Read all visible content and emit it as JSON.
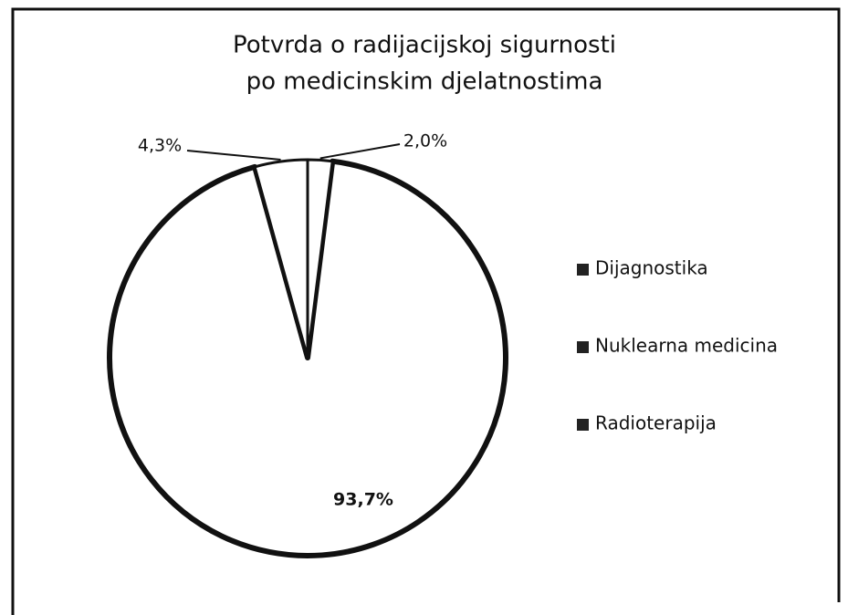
{
  "chart_data": {
    "type": "pie",
    "title": [
      "Potvrda o radijacijskoj sigurnosti",
      "po medicinskim djelatnostima"
    ],
    "categories": [
      "Dijagnostika",
      "Nuklearna medicina",
      "Radioterapija"
    ],
    "values": [
      93.7,
      4.3,
      2.0
    ],
    "value_labels": [
      "93,7%",
      "4,3%",
      "2,0%"
    ],
    "colors": [
      "#ffffff",
      "#ffffff",
      "#ffffff"
    ],
    "legend": "right"
  }
}
